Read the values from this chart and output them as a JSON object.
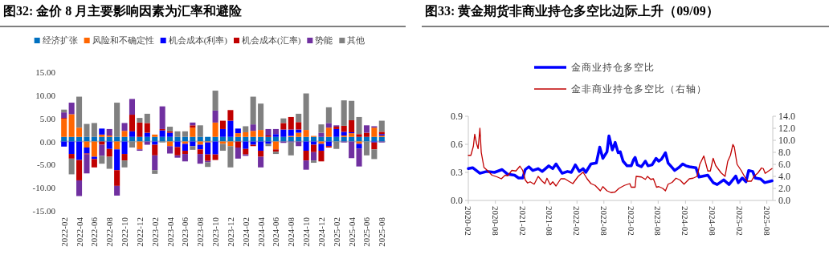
{
  "chart_data": [
    {
      "type": "bar",
      "title": "图32:  金价 8 月主要影响因素为汇率和避险",
      "stacked": true,
      "legend": "top",
      "categories": [
        "2022-02",
        null,
        "2022-04",
        null,
        "2022-06",
        null,
        "2022-08",
        null,
        "2022-10",
        null,
        "2022-12",
        null,
        "2023-02",
        null,
        "2023-04",
        null,
        "2023-06",
        null,
        "2023-08",
        null,
        "2023-10",
        null,
        "2023-12",
        null,
        "2024-02",
        null,
        "2024-04",
        null,
        "2024-06",
        null,
        "2024-08",
        null,
        "2024-10",
        null,
        "2024-12",
        null,
        "2025-02",
        null,
        "2025-04",
        null,
        "2025-06",
        null,
        "2025-08"
      ],
      "ylim": [
        -15,
        15
      ],
      "yticks": [
        {
          "value": -15,
          "label": "-15.00"
        },
        {
          "value": -10,
          "label": "-10.00"
        },
        {
          "value": -5,
          "label": "-5.00"
        },
        {
          "value": 0,
          "label": "0.00"
        },
        {
          "value": 5,
          "label": "5.00"
        },
        {
          "value": 10,
          "label": "10.00"
        },
        {
          "value": 15,
          "label": "15.00"
        }
      ],
      "series": [
        {
          "name": "经济扩张",
          "color": "#0070c0",
          "values": [
            1.0,
            1.0,
            1.0,
            1.0,
            1.0,
            1.0,
            1.0,
            1.0,
            1.0,
            1.0,
            1.0,
            1.0,
            1.0,
            1.0,
            1.0,
            1.0,
            1.0,
            1.0,
            1.0,
            1.0,
            1.0,
            1.0,
            1.0,
            1.0,
            1.0,
            1.0,
            1.0,
            1.0,
            1.0,
            1.0,
            1.0,
            1.0,
            1.0,
            1.0,
            1.0,
            1.0,
            1.0,
            1.0,
            1.0,
            1.0,
            1.0,
            1.0,
            1.0
          ]
        },
        {
          "name": "风险和不确定性",
          "color": "#ff6600",
          "values": [
            3.9,
            4.9,
            2.0,
            -1.3,
            -3.3,
            0.5,
            0.3,
            -1.7,
            1.3,
            0,
            -1.7,
            0,
            0.5,
            0,
            -1.0,
            0,
            -0.5,
            2.0,
            -0.7,
            -0.2,
            3.1,
            -0.5,
            -1.0,
            0.8,
            1.0,
            1.3,
            1.5,
            0,
            -1.7,
            0,
            0.2,
            0.9,
            1.5,
            0.2,
            -0.5,
            2.0,
            0,
            0.3,
            0.8,
            -0.5,
            0,
            2.0,
            0.3
          ]
        },
        {
          "name": "机会成本(利率)",
          "color": "#0000ff",
          "values": [
            -1.1,
            -2.7,
            -4.0,
            -1.3,
            -0.5,
            1.3,
            -1.6,
            -4.5,
            -2.7,
            1.2,
            0,
            0.9,
            -0.7,
            1.4,
            0.9,
            -1.2,
            -1.5,
            -1.0,
            -1.0,
            -2.6,
            -2.8,
            1.7,
            3.5,
            1.0,
            -1.6,
            -0.7,
            -2.0,
            -0.5,
            0.6,
            1.6,
            1.4,
            0.7,
            -2.0,
            -0.7,
            -1.5,
            -1.0,
            1.7,
            0.8,
            0.2,
            -1.0,
            0,
            -0.2,
            0.3
          ]
        },
        {
          "name": "机会成本(汇率)",
          "color": "#c00000",
          "values": [
            0.2,
            -1.0,
            -4.4,
            -0.2,
            -1.8,
            -0.7,
            -1.7,
            -3.4,
            -1.4,
            3.6,
            3.1,
            2.1,
            -2.3,
            0.3,
            0.3,
            -1.8,
            -0.7,
            0.5,
            -1.0,
            -1.4,
            -1.2,
            1.8,
            2.3,
            -1.3,
            -1.2,
            -0.3,
            -1.3,
            0.3,
            -0.5,
            1.4,
            2.7,
            1.6,
            -2.1,
            -1.6,
            -2.3,
            -0.3,
            0.5,
            1.3,
            2.6,
            0.6,
            0.9,
            -1.5,
            0.5
          ]
        },
        {
          "name": "势能",
          "color": "#7030a0",
          "values": [
            1.2,
            2.5,
            -3.4,
            -4.1,
            0,
            -2.4,
            1.4,
            -2.1,
            1.7,
            3.4,
            -0.3,
            -0.7,
            -3.2,
            4.9,
            -1.6,
            -0.5,
            -1.6,
            0.6,
            -2.1,
            -0.3,
            2.6,
            0,
            0,
            -2.4,
            -0.3,
            1.4,
            -2.3,
            1.4,
            1.1,
            -0.3,
            -0.2,
            -1.0,
            -2.0,
            -1.8,
            0.9,
            1.0,
            0.3,
            -0.2,
            -3.6,
            -3.9,
            1.6,
            0.3,
            -0.2
          ]
        },
        {
          "name": "其他",
          "color": "#808080",
          "values": [
            0.6,
            -3.4,
            6.7,
            2.8,
            3.0,
            -1.7,
            -2.6,
            7.4,
            -1.5,
            -1.3,
            1.0,
            2.0,
            -0.8,
            -0.2,
            1.0,
            1.2,
            1.2,
            -0.8,
            2.5,
            -1.0,
            4.3,
            -1.5,
            -4.6,
            0,
            1.3,
            6.0,
            5.7,
            -0.5,
            -0.5,
            1.0,
            -2.8,
            1.8,
            7.9,
            -0.5,
            1.8,
            3.4,
            -1.6,
            5.5,
            4.2,
            3.7,
            -3.0,
            -2.1,
            2.4
          ]
        }
      ]
    },
    {
      "type": "line",
      "title": "图33:  黄金期货非商业持仓多空比边际上升（09/09）",
      "legend": "top",
      "xlim": [
        "2020-02-01",
        "2025-09-10"
      ],
      "xticks": [
        {
          "value": "2020-02",
          "label": "2020-02"
        },
        {
          "value": "2020-08",
          "label": "2020-08"
        },
        {
          "value": "2021-02",
          "label": "2021-02"
        },
        {
          "value": "2021-08",
          "label": "2021-08"
        },
        {
          "value": "2022-02",
          "label": "2022-02"
        },
        {
          "value": "2022-08",
          "label": "2022-08"
        },
        {
          "value": "2023-02",
          "label": "2023-02"
        },
        {
          "value": "2023-08",
          "label": "2023-08"
        },
        {
          "value": "2024-02",
          "label": "2024-02"
        },
        {
          "value": "2024-08",
          "label": "2024-08"
        },
        {
          "value": "2025-02",
          "label": "2025-02"
        },
        {
          "value": "2025-08",
          "label": "2025-08"
        }
      ],
      "ylim": [
        0,
        0.9
      ],
      "yticks": [
        {
          "value": 0,
          "label": "0.0"
        },
        0.3,
        0.6,
        0.9
      ],
      "y2lim": [
        0,
        14
      ],
      "y2ticks": [
        {
          "value": 0,
          "label": "0.0"
        },
        {
          "value": 2,
          "label": "2.0"
        },
        {
          "value": 4,
          "label": "4.0"
        },
        {
          "value": 6,
          "label": "6.0"
        },
        {
          "value": 8,
          "label": "8.0"
        },
        {
          "value": 10,
          "label": "10.0"
        },
        {
          "value": 12,
          "label": "12.0"
        },
        {
          "value": 14,
          "label": "14.0"
        }
      ],
      "series": [
        {
          "name": "金商业持仓多空比",
          "color": "#0000ff",
          "x": [
            "2020-02-01",
            "2020-03-01",
            "2020-04-19",
            "2020-06-03",
            "2020-07-26",
            "2020-09-15",
            "2020-10-23",
            "2020-12-08",
            "2021-01-04",
            "2021-02-01",
            "2021-02-18",
            "2021-03-14",
            "2021-04-10",
            "2021-05-16",
            "2021-06-12",
            "2021-07-26",
            "2021-08-22",
            "2021-09-13",
            "2021-10-24",
            "2021-11-29",
            "2021-12-25",
            "2022-01-21",
            "2022-02-17",
            "2022-03-14",
            "2022-04-01",
            "2022-05-06",
            "2022-06-11",
            "2022-07-04",
            "2022-07-25",
            "2022-08-22",
            "2022-09-04",
            "2022-09-27",
            "2022-10-16",
            "2022-11-05",
            "2022-11-19",
            "2022-12-08",
            "2023-01-04",
            "2023-02-01",
            "2023-02-18",
            "2023-02-27",
            "2023-03-14",
            "2023-04-10",
            "2023-05-07",
            "2023-05-25",
            "2023-06-21",
            "2023-07-18",
            "2023-08-05",
            "2023-08-23",
            "2023-09-19",
            "2023-10-07",
            "2023-10-24",
            "2023-11-20",
            "2023-12-17",
            "2024-01-13",
            "2024-02-04",
            "2024-02-27",
            "2024-04-11",
            "2024-05-02",
            "2024-06-30",
            "2024-08-05",
            "2024-09-01",
            "2024-10-15",
            "2024-11-20",
            "2025-01-04",
            "2025-01-21",
            "2025-02-17",
            "2025-03-14",
            "2025-04-01",
            "2025-04-28",
            "2025-05-15",
            "2025-06-20",
            "2025-07-17",
            "2025-09-05"
          ],
          "values": [
            0.34,
            0.35,
            0.29,
            0.31,
            0.3,
            0.33,
            0.28,
            0.27,
            0.24,
            0.24,
            0.33,
            0.36,
            0.32,
            0.34,
            0.31,
            0.37,
            0.34,
            0.39,
            0.29,
            0.31,
            0.3,
            0.38,
            0.31,
            0.34,
            0.3,
            0.39,
            0.4,
            0.57,
            0.45,
            0.52,
            0.69,
            0.54,
            0.62,
            0.51,
            0.52,
            0.42,
            0.37,
            0.37,
            0.44,
            0.46,
            0.38,
            0.36,
            0.42,
            0.37,
            0.38,
            0.45,
            0.42,
            0.44,
            0.51,
            0.4,
            0.37,
            0.32,
            0.35,
            0.39,
            0.37,
            0.36,
            0.35,
            0.25,
            0.27,
            0.19,
            0.17,
            0.22,
            0.17,
            0.26,
            0.19,
            0.24,
            0.2,
            0.32,
            0.31,
            0.24,
            0.23,
            0.19,
            0.21
          ]
        },
        {
          "name": "金非商业持仓多空比（右轴）",
          "color": "#c00000",
          "axis": "y2",
          "x": [
            "2020-02-01",
            "2020-02-18",
            "2020-03-06",
            "2020-03-15",
            "2020-03-27",
            "2020-04-07",
            "2020-04-19",
            "2020-04-28",
            "2020-05-16",
            "2020-06-12",
            "2020-07-09",
            "2020-08-14",
            "2020-09-10",
            "2020-10-06",
            "2020-10-23",
            "2020-11-20",
            "2020-12-17",
            "2021-01-13",
            "2021-02-01",
            "2021-02-18",
            "2021-03-06",
            "2021-03-23",
            "2021-04-19",
            "2021-05-16",
            "2021-06-12",
            "2021-06-30",
            "2021-07-14",
            "2021-08-05",
            "2021-08-22",
            "2021-09-13",
            "2021-10-15",
            "2021-11-11",
            "2021-12-07",
            "2022-01-04",
            "2022-02-09",
            "2022-03-14",
            "2022-04-10",
            "2022-05-06",
            "2022-06-03",
            "2022-07-08",
            "2022-07-25",
            "2022-08-22",
            "2022-09-18",
            "2022-10-15",
            "2022-11-10",
            "2022-12-17",
            "2023-01-22",
            "2023-02-01",
            "2023-02-27",
            "2023-03-06",
            "2023-04-10",
            "2023-05-07",
            "2023-05-21",
            "2023-06-12",
            "2023-06-30",
            "2023-07-21",
            "2023-08-05",
            "2023-09-01",
            "2023-09-19",
            "2023-10-07",
            "2023-11-03",
            "2023-11-29",
            "2023-12-26",
            "2024-01-22",
            "2024-02-27",
            "2024-03-23",
            "2024-04-19",
            "2024-05-07",
            "2024-06-03",
            "2024-06-30",
            "2024-07-17",
            "2024-08-05",
            "2024-08-22",
            "2024-09-27",
            "2024-10-24",
            "2024-11-11",
            "2024-11-29",
            "2024-12-16",
            "2024-12-25",
            "2025-01-13",
            "2025-02-09",
            "2025-03-06",
            "2025-03-23",
            "2025-04-19",
            "2025-05-07",
            "2025-06-03",
            "2025-06-26",
            "2025-07-08",
            "2025-07-21",
            "2025-09-05"
          ],
          "values": [
            7.5,
            7.5,
            9.0,
            11.0,
            9.5,
            8.6,
            12.0,
            8.0,
            5.5,
            4.9,
            4.2,
            3.9,
            3.6,
            4.2,
            4.1,
            5.0,
            4.9,
            5.7,
            5.0,
            3.4,
            2.9,
            3.1,
            2.7,
            4.0,
            3.2,
            2.8,
            3.7,
            2.6,
            3.1,
            2.4,
            3.6,
            3.6,
            3.2,
            2.8,
            4.0,
            4.7,
            3.6,
            2.8,
            2.5,
            1.6,
            2.3,
            1.6,
            1.3,
            1.4,
            2.0,
            2.5,
            2.8,
            2.2,
            2.2,
            4.0,
            3.9,
            3.5,
            4.0,
            3.5,
            3.6,
            2.2,
            2.3,
            2.0,
            1.6,
            2.7,
            3.0,
            3.7,
            3.4,
            2.7,
            3.6,
            3.7,
            4.0,
            6.0,
            7.4,
            4.9,
            4.9,
            7.0,
            5.8,
            4.6,
            4.0,
            6.5,
            7.5,
            9.3,
            8.9,
            6.0,
            5.0,
            3.9,
            3.2,
            3.2,
            4.0,
            4.6,
            5.4,
            5.3,
            4.5,
            5.3
          ]
        }
      ]
    }
  ]
}
